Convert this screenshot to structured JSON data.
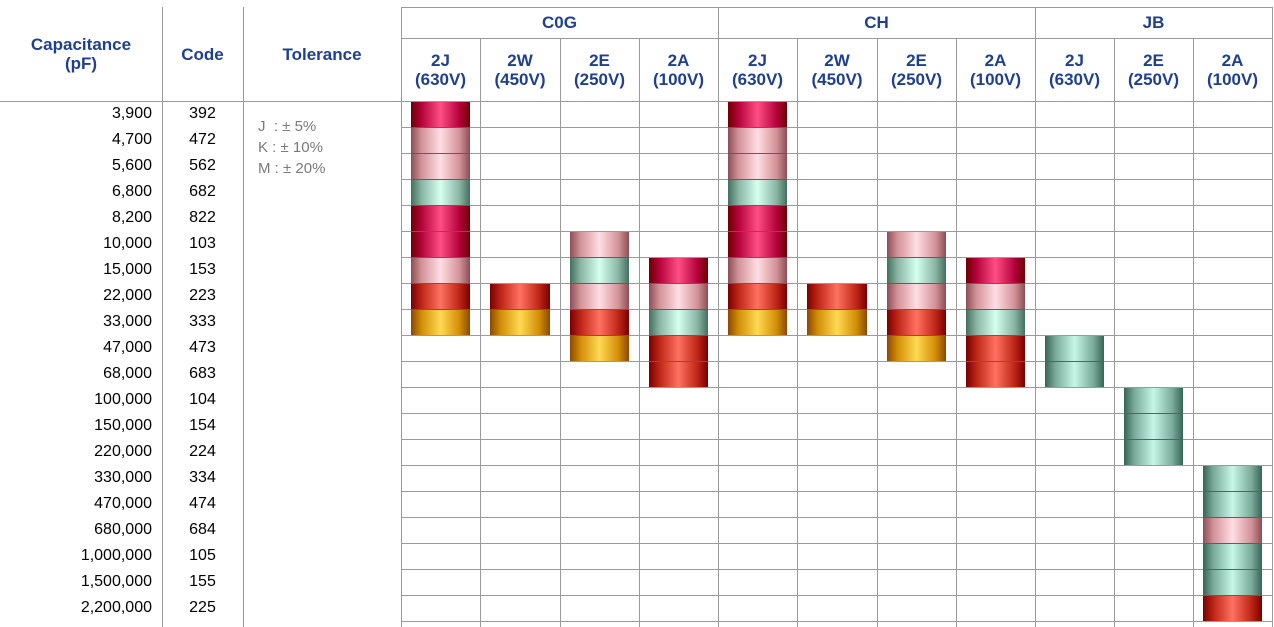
{
  "headers": {
    "capacitance": "Capacitance\n(pF)",
    "code": "Code",
    "tolerance": "Tolerance",
    "groups": [
      {
        "name": "C0G",
        "columns": [
          {
            "code": "2J",
            "voltage": "(630V)"
          },
          {
            "code": "2W",
            "voltage": "(450V)"
          },
          {
            "code": "2E",
            "voltage": "(250V)"
          },
          {
            "code": "2A",
            "voltage": "(100V)"
          }
        ]
      },
      {
        "name": "CH",
        "columns": [
          {
            "code": "2J",
            "voltage": "(630V)"
          },
          {
            "code": "2W",
            "voltage": "(450V)"
          },
          {
            "code": "2E",
            "voltage": "(250V)"
          },
          {
            "code": "2A",
            "voltage": "(100V)"
          }
        ]
      },
      {
        "name": "JB",
        "columns": [
          {
            "code": "2J",
            "voltage": "(630V)"
          },
          {
            "code": "2E",
            "voltage": "(250V)"
          },
          {
            "code": "2A",
            "voltage": "(100V)"
          }
        ]
      }
    ]
  },
  "tolerances": [
    "J  : ± 5%",
    "K : ± 10%",
    "M : ± 20%"
  ],
  "rows": [
    {
      "cap": "3,900",
      "code": "392"
    },
    {
      "cap": "4,700",
      "code": "472"
    },
    {
      "cap": "5,600",
      "code": "562"
    },
    {
      "cap": "6,800",
      "code": "682"
    },
    {
      "cap": "8,200",
      "code": "822"
    },
    {
      "cap": "10,000",
      "code": "103"
    },
    {
      "cap": "15,000",
      "code": "153"
    },
    {
      "cap": "22,000",
      "code": "223"
    },
    {
      "cap": "33,000",
      "code": "333"
    },
    {
      "cap": "47,000",
      "code": "473"
    },
    {
      "cap": "68,000",
      "code": "683"
    },
    {
      "cap": "100,000",
      "code": "104"
    },
    {
      "cap": "150,000",
      "code": "154"
    },
    {
      "cap": "220,000",
      "code": "224"
    },
    {
      "cap": "330,000",
      "code": "334"
    },
    {
      "cap": "470,000",
      "code": "474"
    },
    {
      "cap": "680,000",
      "code": "684"
    },
    {
      "cap": "1,000,000",
      "code": "105"
    },
    {
      "cap": "1,500,000",
      "code": "155"
    },
    {
      "cap": "2,200,000",
      "code": "225"
    }
  ],
  "colors": {
    "crimson": "#c8174f",
    "pink": "#e6a7ad",
    "teal": "#9ec9b8",
    "red": "#d23a2a",
    "orange": "#e7a21c",
    "slate": "#8fbfaf",
    "header_blue": "#1f3f8f"
  },
  "availability": [
    {
      "column": 0,
      "bands": [
        "crimson",
        "pink",
        "pink",
        "teal",
        "crimson",
        "crimson",
        "pink",
        "red",
        "orange"
      ],
      "start_row": 0
    },
    {
      "column": 1,
      "bands": [
        "red",
        "orange"
      ],
      "start_row": 7
    },
    {
      "column": 2,
      "bands": [
        "pink",
        "teal",
        "pink",
        "red",
        "orange"
      ],
      "start_row": 5
    },
    {
      "column": 3,
      "bands": [
        "crimson",
        "pink",
        "teal",
        "red",
        "red"
      ],
      "start_row": 6
    },
    {
      "column": 4,
      "bands": [
        "crimson",
        "pink",
        "pink",
        "teal",
        "crimson",
        "crimson",
        "pink",
        "red",
        "orange"
      ],
      "start_row": 0
    },
    {
      "column": 5,
      "bands": [
        "red",
        "orange"
      ],
      "start_row": 7
    },
    {
      "column": 6,
      "bands": [
        "pink",
        "teal",
        "pink",
        "red",
        "orange"
      ],
      "start_row": 5
    },
    {
      "column": 7,
      "bands": [
        "crimson",
        "pink",
        "teal",
        "red",
        "red"
      ],
      "start_row": 6
    },
    {
      "column": 8,
      "bands": [
        "slate",
        "slate"
      ],
      "start_row": 9
    },
    {
      "column": 9,
      "bands": [
        "slate",
        "slate",
        "slate"
      ],
      "start_row": 11
    },
    {
      "column": 10,
      "bands": [
        "slate",
        "slate",
        "pink",
        "slate",
        "slate",
        "red"
      ],
      "start_row": 14
    }
  ]
}
